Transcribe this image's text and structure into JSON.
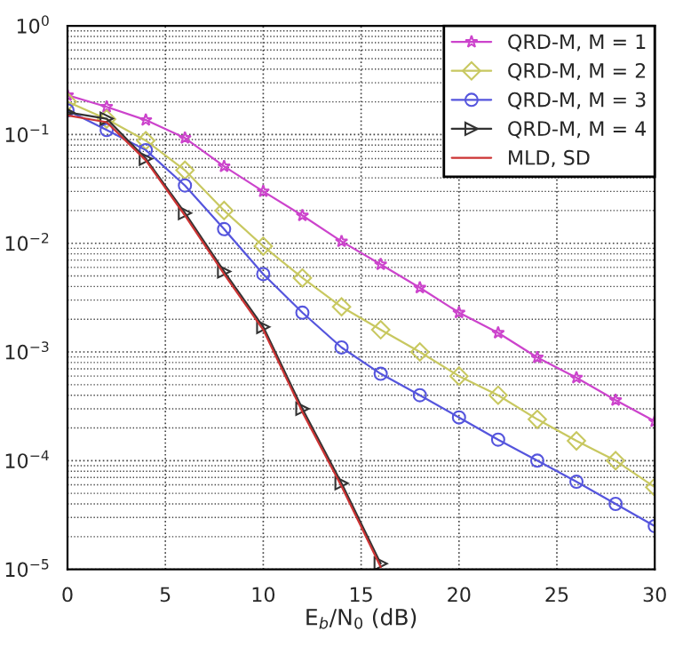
{
  "chart_data": {
    "type": "line",
    "xlabel": "E$_{b}$/N$_{0}$ (dB)",
    "xlim": [
      0,
      30
    ],
    "xticks": [
      0,
      5,
      10,
      15,
      20,
      25,
      30
    ],
    "ylim": [
      1e-05,
      1
    ],
    "log": true,
    "yticks": [
      {
        "value": 1e-05,
        "label": "10$^{−5}$"
      },
      {
        "value": 0.0001,
        "label": "10$^{−4}$"
      },
      {
        "value": 0.001,
        "label": "10$^{−3}$"
      },
      {
        "value": 0.01,
        "label": "10$^{−2}$"
      },
      {
        "value": 0.1,
        "label": "10$^{−1}$"
      },
      {
        "value": 1,
        "label": "10$^{0}$"
      }
    ],
    "grid": true,
    "legend": "top right",
    "series": [
      {
        "name": "QRD-M, M = 1",
        "color": "#cc44cc",
        "marker": "star",
        "x": [
          0,
          2,
          4,
          6,
          8,
          10,
          12,
          14,
          16,
          18,
          20,
          22,
          24,
          26,
          28,
          30
        ],
        "values": [
          0.23,
          0.18,
          0.136,
          0.093,
          0.051,
          0.03,
          0.018,
          0.0104,
          0.0064,
          0.0039,
          0.0023,
          0.0015,
          0.00089,
          0.00058,
          0.00036,
          0.00023
        ]
      },
      {
        "name": "QRD-M, M = 2",
        "color": "#c8c860",
        "marker": "diamond",
        "x": [
          0,
          2,
          4,
          6,
          8,
          10,
          12,
          14,
          16,
          18,
          20,
          22,
          24,
          26,
          28,
          30
        ],
        "values": [
          0.2,
          0.139,
          0.088,
          0.047,
          0.02,
          0.0094,
          0.0048,
          0.0026,
          0.0016,
          0.001,
          0.0006,
          0.0004,
          0.00024,
          0.000152,
          0.0001,
          5.7e-05
        ]
      },
      {
        "name": "QRD-M, M = 3",
        "color": "#5555dd",
        "marker": "circle",
        "x": [
          0,
          2,
          4,
          6,
          8,
          10,
          12,
          14,
          16,
          18,
          20,
          22,
          24,
          26,
          28,
          30
        ],
        "values": [
          0.167,
          0.11,
          0.072,
          0.034,
          0.0135,
          0.0052,
          0.0023,
          0.0011,
          0.00063,
          0.0004,
          0.00025,
          0.000156,
          0.0001,
          6.4e-05,
          4e-05,
          2.5e-05
        ]
      },
      {
        "name": "QRD-M, M = 4",
        "color": "#333333",
        "marker": "triangle",
        "x": [
          0,
          2,
          4,
          6,
          8,
          10,
          12,
          14,
          16
        ],
        "values": [
          0.16,
          0.14,
          0.06,
          0.019,
          0.0055,
          0.0017,
          0.0003,
          6.2e-05,
          1.13e-05
        ]
      },
      {
        "name": "MLD, SD",
        "color": "#cc3333",
        "marker": "none",
        "x": [
          0,
          2,
          4,
          6,
          8,
          10,
          12,
          14,
          16
        ],
        "values": [
          0.15,
          0.13,
          0.058,
          0.018,
          0.0052,
          0.0016,
          0.00028,
          5.8e-05,
          1.05e-05
        ]
      }
    ]
  }
}
